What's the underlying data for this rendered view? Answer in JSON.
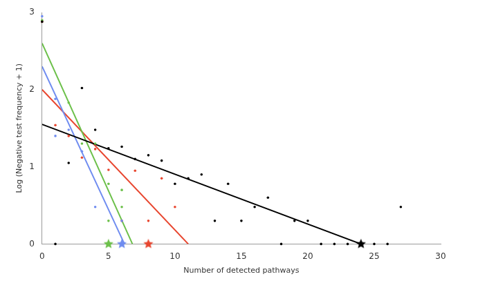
{
  "chart_data": {
    "type": "scatter",
    "x_label": "Number of detected pathways",
    "y_label": "Log (Negative test frequency + 1)",
    "xlim": [
      0,
      30
    ],
    "xticks": [
      0,
      5,
      10,
      15,
      20,
      25,
      30
    ],
    "ylim": [
      0,
      3
    ],
    "yticks": [
      0,
      1,
      2,
      3
    ],
    "grid": false,
    "series": [
      {
        "type": "scatter",
        "marker": "circle",
        "color": "#000000",
        "x": [
          0,
          1,
          2,
          3,
          4,
          5,
          6,
          7,
          8,
          9,
          10,
          11,
          12,
          13,
          14,
          15,
          16,
          17,
          18,
          19,
          20,
          21,
          22,
          23,
          24,
          25,
          26,
          27
        ],
        "values": [
          2.88,
          0,
          1.05,
          2.02,
          1.48,
          1.24,
          1.26,
          1.1,
          1.15,
          1.08,
          0.78,
          0.85,
          0.9,
          0.3,
          0.78,
          0.3,
          0.48,
          0.6,
          0,
          0.3,
          0.3,
          0,
          0,
          0,
          0,
          0,
          0,
          0.48
        ]
      },
      {
        "type": "scatter",
        "marker": "circle",
        "color": "#6f8cf0",
        "x": [
          0,
          1,
          1,
          2,
          3,
          4,
          6
        ],
        "values": [
          2.95,
          1.88,
          1.4,
          1.48,
          1.2,
          0.48,
          0.3
        ]
      },
      {
        "type": "scatter",
        "marker": "circle",
        "color": "#6cc04a",
        "x": [
          0,
          2,
          3,
          4,
          5,
          5,
          6,
          6
        ],
        "values": [
          2.9,
          1.83,
          1.3,
          1.3,
          0.78,
          0.3,
          0.7,
          0.48
        ]
      },
      {
        "type": "scatter",
        "marker": "circle",
        "color": "#e8462f",
        "x": [
          0,
          1,
          2,
          3,
          4,
          5,
          6,
          7,
          8,
          9,
          10
        ],
        "values": [
          2.88,
          1.54,
          1.4,
          1.12,
          1.23,
          0.96,
          0.3,
          0.95,
          0.3,
          0.85,
          0.48
        ]
      },
      {
        "type": "line",
        "line_style": "solid",
        "color": "#000000",
        "x": [
          0,
          24
        ],
        "values": [
          1.55,
          0
        ]
      },
      {
        "type": "line",
        "line_style": "solid",
        "color": "#6f8cf0",
        "x": [
          0,
          6.2
        ],
        "values": [
          2.3,
          0
        ]
      },
      {
        "type": "line",
        "line_style": "solid",
        "color": "#6cc04a",
        "x": [
          0,
          6.8
        ],
        "values": [
          2.6,
          0
        ]
      },
      {
        "type": "line",
        "line_style": "solid",
        "color": "#e8462f",
        "x": [
          0,
          11
        ],
        "values": [
          2.0,
          0
        ]
      },
      {
        "type": "scatter",
        "marker": "star",
        "color": "#000000",
        "x": [
          24
        ],
        "values": [
          0
        ]
      },
      {
        "type": "scatter",
        "marker": "star",
        "color": "#6f8cf0",
        "x": [
          6
        ],
        "values": [
          0
        ]
      },
      {
        "type": "scatter",
        "marker": "star",
        "color": "#6cc04a",
        "x": [
          5
        ],
        "values": [
          0
        ]
      },
      {
        "type": "scatter",
        "marker": "star",
        "color": "#e8462f",
        "x": [
          8
        ],
        "values": [
          0
        ]
      }
    ]
  }
}
